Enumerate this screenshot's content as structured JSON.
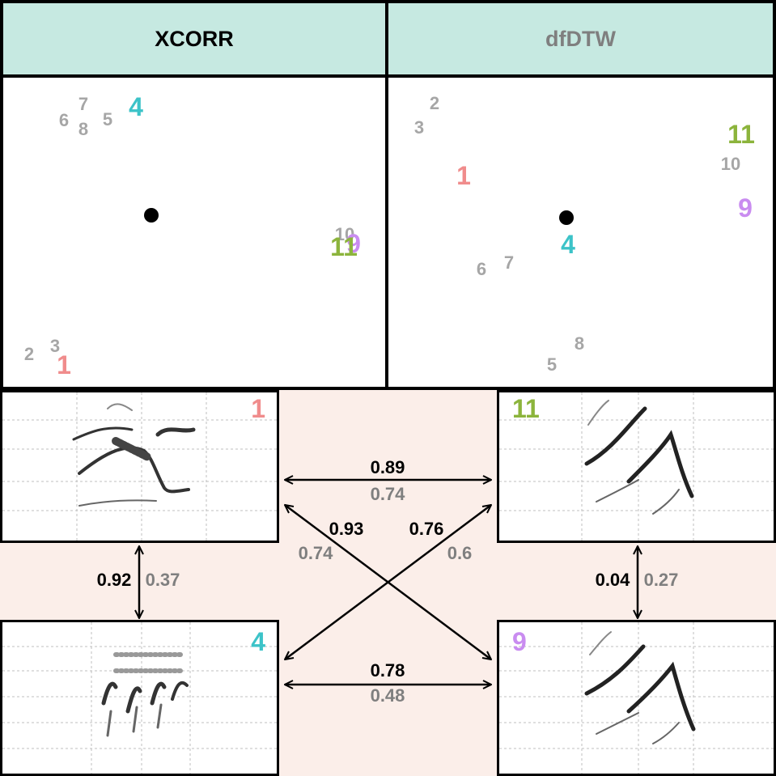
{
  "headers": {
    "left": "XCORR",
    "right": "dfDTW"
  },
  "colors": {
    "header_bg": "#c6e9e1",
    "band_bg": "#fbeee9",
    "grey_label": "#a6a6a6",
    "grey_value": "#7f7f7f",
    "id1": "#f08c8c",
    "id4": "#3cc3c8",
    "id9": "#c98cf0",
    "id11": "#8cb43c"
  },
  "xcorr_panel": {
    "small": [
      "7",
      "6",
      "8",
      "5",
      "10",
      "2",
      "3"
    ],
    "big": {
      "id4": "4",
      "id11": "11",
      "id9": "9",
      "id1": "1"
    }
  },
  "dfdtw_panel": {
    "small": [
      "2",
      "3",
      "10",
      "6",
      "7",
      "8",
      "5"
    ],
    "big": {
      "id11": "11",
      "id1": "1",
      "id9": "9",
      "id4": "4"
    }
  },
  "spectrograms": {
    "top_left": "1",
    "top_right": "11",
    "bottom_left": "4",
    "bottom_right": "9"
  },
  "similarities": {
    "top": {
      "xcorr": "0.89",
      "dfdtw": "0.74"
    },
    "bottom": {
      "xcorr": "0.78",
      "dfdtw": "0.48"
    },
    "left": {
      "xcorr": "0.92",
      "dfdtw": "0.37"
    },
    "right": {
      "xcorr": "0.04",
      "dfdtw": "0.27"
    },
    "diag_down": {
      "xcorr": "0.93",
      "dfdtw": "0.74"
    },
    "diag_up": {
      "xcorr": "0.76",
      "dfdtw": "0.6"
    }
  }
}
